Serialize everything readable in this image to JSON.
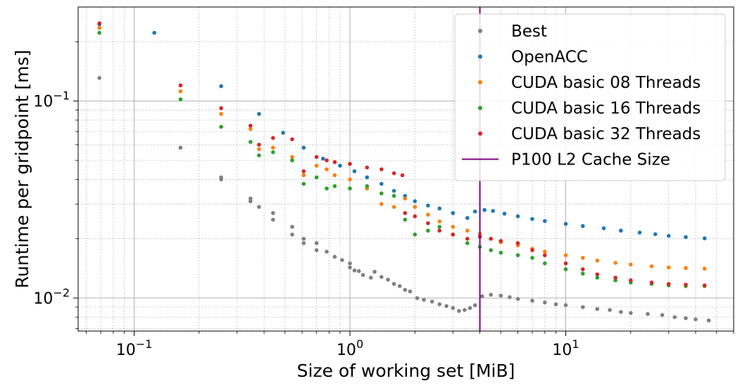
{
  "chart_data": {
    "type": "scatter",
    "xlabel": "Size of working set [MiB]",
    "ylabel": "Runtime per gridpoint [ms]",
    "xscale": "log",
    "yscale": "log",
    "xlim": [
      0.055,
      60
    ],
    "ylim": [
      0.0068,
      0.3
    ],
    "grid": "major-solid-minor-dotted",
    "legend_position": "top-right",
    "x_ticks": [
      {
        "value": 0.1,
        "base": "10",
        "exp": "−1"
      },
      {
        "value": 1,
        "base": "10",
        "exp": "0"
      },
      {
        "value": 10,
        "base": "10",
        "exp": "1"
      }
    ],
    "y_ticks": [
      {
        "value": 0.01,
        "base": "10",
        "exp": "−2"
      },
      {
        "value": 0.1,
        "base": "10",
        "exp": "−1"
      }
    ],
    "vline": {
      "name": "P100 L2 Cache Size",
      "x": 4.0,
      "color": "#800080"
    },
    "series": [
      {
        "name": "Best",
        "color": "#7f7f7f",
        "points": [
          [
            0.069,
            0.131
          ],
          [
            0.164,
            0.058
          ],
          [
            0.253,
            0.041
          ],
          [
            0.253,
            0.04
          ],
          [
            0.346,
            0.032
          ],
          [
            0.346,
            0.031
          ],
          [
            0.379,
            0.029
          ],
          [
            0.44,
            0.027
          ],
          [
            0.44,
            0.025
          ],
          [
            0.54,
            0.023
          ],
          [
            0.54,
            0.021
          ],
          [
            0.61,
            0.02
          ],
          [
            0.61,
            0.019
          ],
          [
            0.7,
            0.019
          ],
          [
            0.7,
            0.0175
          ],
          [
            0.78,
            0.0172
          ],
          [
            0.85,
            0.0162
          ],
          [
            0.92,
            0.0156
          ],
          [
            1.0,
            0.015
          ],
          [
            1.0,
            0.0143
          ],
          [
            1.05,
            0.0138
          ],
          [
            1.1,
            0.0137
          ],
          [
            1.15,
            0.0131
          ],
          [
            1.25,
            0.0127
          ],
          [
            1.3,
            0.0136
          ],
          [
            1.4,
            0.0128
          ],
          [
            1.5,
            0.0124
          ],
          [
            1.6,
            0.0118
          ],
          [
            1.7,
            0.0115
          ],
          [
            1.8,
            0.011
          ],
          [
            1.9,
            0.0108
          ],
          [
            2.05,
            0.01
          ],
          [
            2.2,
            0.0098
          ],
          [
            2.4,
            0.0096
          ],
          [
            2.6,
            0.0093
          ],
          [
            2.8,
            0.0091
          ],
          [
            3.0,
            0.0089
          ],
          [
            3.2,
            0.0086
          ],
          [
            3.4,
            0.0087
          ],
          [
            3.6,
            0.0089
          ],
          [
            3.8,
            0.0092
          ],
          [
            4.1,
            0.0102
          ],
          [
            4.5,
            0.0104
          ],
          [
            5.0,
            0.0103
          ],
          [
            5.5,
            0.0101
          ],
          [
            6.0,
            0.0099
          ],
          [
            7.0,
            0.0097
          ],
          [
            8.0,
            0.0095
          ],
          [
            9.0,
            0.0093
          ],
          [
            10.0,
            0.0092
          ],
          [
            12.0,
            0.009
          ],
          [
            14.0,
            0.0088
          ],
          [
            16.0,
            0.0087
          ],
          [
            18.0,
            0.0085
          ],
          [
            20.0,
            0.0084
          ],
          [
            24.0,
            0.0083
          ],
          [
            28.0,
            0.0082
          ],
          [
            32.0,
            0.008
          ],
          [
            36.0,
            0.0079
          ],
          [
            40.0,
            0.0078
          ],
          [
            46.0,
            0.0077
          ]
        ]
      },
      {
        "name": "OpenACC",
        "color": "#1f77b4",
        "points": [
          [
            0.069,
            0.245
          ],
          [
            0.124,
            0.222
          ],
          [
            0.253,
            0.119
          ],
          [
            0.379,
            0.086
          ],
          [
            0.49,
            0.069
          ],
          [
            0.61,
            0.058
          ],
          [
            0.75,
            0.051
          ],
          [
            0.9,
            0.047
          ],
          [
            1.05,
            0.044
          ],
          [
            1.2,
            0.041
          ],
          [
            1.4,
            0.038
          ],
          [
            1.6,
            0.035
          ],
          [
            1.8,
            0.033
          ],
          [
            2.0,
            0.031
          ],
          [
            2.3,
            0.0295
          ],
          [
            2.6,
            0.0285
          ],
          [
            3.0,
            0.027
          ],
          [
            3.5,
            0.0255
          ],
          [
            3.8,
            0.0275
          ],
          [
            4.2,
            0.028
          ],
          [
            4.6,
            0.0277
          ],
          [
            5.2,
            0.0268
          ],
          [
            6.0,
            0.026
          ],
          [
            7.0,
            0.0252
          ],
          [
            8.0,
            0.0246
          ],
          [
            10.0,
            0.0238
          ],
          [
            12.0,
            0.0232
          ],
          [
            15.0,
            0.0226
          ],
          [
            18.0,
            0.022
          ],
          [
            22.0,
            0.0215
          ],
          [
            26.0,
            0.0211
          ],
          [
            30.0,
            0.0207
          ],
          [
            36.0,
            0.0204
          ],
          [
            44.0,
            0.0201
          ]
        ]
      },
      {
        "name": "CUDA basic 08 Threads",
        "color": "#ff7f0e",
        "points": [
          [
            0.069,
            0.235
          ],
          [
            0.164,
            0.112
          ],
          [
            0.253,
            0.086
          ],
          [
            0.346,
            0.072
          ],
          [
            0.379,
            0.057
          ],
          [
            0.44,
            0.058
          ],
          [
            0.54,
            0.052
          ],
          [
            0.61,
            0.042
          ],
          [
            0.7,
            0.047
          ],
          [
            0.78,
            0.045
          ],
          [
            0.85,
            0.042
          ],
          [
            1.0,
            0.04
          ],
          [
            1.2,
            0.036
          ],
          [
            1.4,
            0.03
          ],
          [
            1.6,
            0.029
          ],
          [
            1.8,
            0.032
          ],
          [
            2.0,
            0.029
          ],
          [
            2.3,
            0.0265
          ],
          [
            2.6,
            0.0245
          ],
          [
            3.0,
            0.023
          ],
          [
            3.5,
            0.022
          ],
          [
            4.0,
            0.0212
          ],
          [
            4.5,
            0.02
          ],
          [
            5.0,
            0.0192
          ],
          [
            6.0,
            0.0185
          ],
          [
            7.0,
            0.0178
          ],
          [
            8.0,
            0.0172
          ],
          [
            10.0,
            0.0165
          ],
          [
            12.0,
            0.016
          ],
          [
            14.0,
            0.0155
          ],
          [
            17.0,
            0.0151
          ],
          [
            20.0,
            0.0148
          ],
          [
            25.0,
            0.0145
          ],
          [
            30.0,
            0.0143
          ],
          [
            36.0,
            0.0142
          ],
          [
            44.0,
            0.0141
          ]
        ]
      },
      {
        "name": "CUDA basic 16 Threads",
        "color": "#2ca02c",
        "points": [
          [
            0.069,
            0.222
          ],
          [
            0.164,
            0.102
          ],
          [
            0.253,
            0.074
          ],
          [
            0.346,
            0.062
          ],
          [
            0.379,
            0.053
          ],
          [
            0.44,
            0.055
          ],
          [
            0.54,
            0.05
          ],
          [
            0.61,
            0.038
          ],
          [
            0.7,
            0.041
          ],
          [
            0.78,
            0.036
          ],
          [
            0.85,
            0.037
          ],
          [
            1.0,
            0.036
          ],
          [
            1.2,
            0.037
          ],
          [
            1.4,
            0.034
          ],
          [
            1.6,
            0.033
          ],
          [
            1.8,
            0.025
          ],
          [
            2.0,
            0.021
          ],
          [
            2.3,
            0.022
          ],
          [
            2.6,
            0.023
          ],
          [
            3.0,
            0.021
          ],
          [
            3.5,
            0.019
          ],
          [
            4.0,
            0.0182
          ],
          [
            4.5,
            0.0175
          ],
          [
            5.0,
            0.017
          ],
          [
            6.0,
            0.0165
          ],
          [
            7.0,
            0.016
          ],
          [
            8.0,
            0.015
          ],
          [
            10.0,
            0.014
          ],
          [
            12.0,
            0.0133
          ],
          [
            14.0,
            0.0127
          ],
          [
            17.0,
            0.0123
          ],
          [
            20.0,
            0.012
          ],
          [
            25.0,
            0.0118
          ],
          [
            30.0,
            0.0116
          ],
          [
            36.0,
            0.0115
          ],
          [
            44.0,
            0.0115
          ]
        ]
      },
      {
        "name": "CUDA basic 32 Threads",
        "color": "#d62728",
        "points": [
          [
            0.069,
            0.248
          ],
          [
            0.164,
            0.12
          ],
          [
            0.253,
            0.092
          ],
          [
            0.346,
            0.075
          ],
          [
            0.379,
            0.06
          ],
          [
            0.44,
            0.065
          ],
          [
            0.54,
            0.064
          ],
          [
            0.61,
            0.044
          ],
          [
            0.7,
            0.052
          ],
          [
            0.78,
            0.05
          ],
          [
            0.85,
            0.049
          ],
          [
            1.0,
            0.048
          ],
          [
            1.2,
            0.046
          ],
          [
            1.4,
            0.045
          ],
          [
            1.6,
            0.043
          ],
          [
            1.75,
            0.042
          ],
          [
            1.8,
            0.027
          ],
          [
            2.0,
            0.026
          ],
          [
            2.3,
            0.024
          ],
          [
            2.6,
            0.022
          ],
          [
            3.0,
            0.021
          ],
          [
            3.5,
            0.02
          ],
          [
            4.0,
            0.0205
          ],
          [
            4.5,
            0.02
          ],
          [
            5.0,
            0.0195
          ],
          [
            6.0,
            0.019
          ],
          [
            7.0,
            0.0175
          ],
          [
            8.0,
            0.0165
          ],
          [
            10.0,
            0.015
          ],
          [
            12.0,
            0.014
          ],
          [
            14.0,
            0.0132
          ],
          [
            17.0,
            0.0127
          ],
          [
            20.0,
            0.0123
          ],
          [
            25.0,
            0.012
          ],
          [
            30.0,
            0.0118
          ],
          [
            36.0,
            0.0117
          ],
          [
            44.0,
            0.0116
          ]
        ]
      }
    ]
  }
}
